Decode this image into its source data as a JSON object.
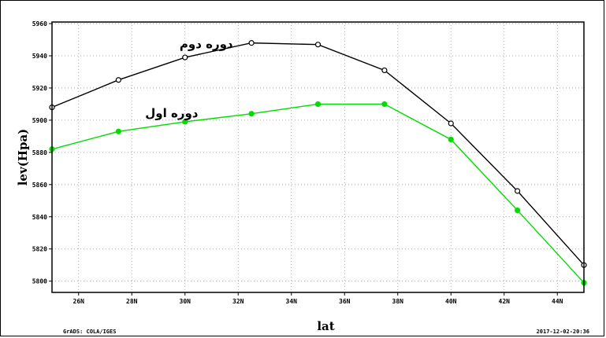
{
  "chart_data": {
    "type": "line",
    "title": "",
    "xlabel": "lat",
    "ylabel": "lev(Hpa)",
    "x": [
      25,
      27.5,
      30,
      32.5,
      35,
      37.5,
      40,
      42.5,
      45
    ],
    "x_ticks": [
      "26N",
      "28N",
      "30N",
      "32N",
      "34N",
      "36N",
      "38N",
      "40N",
      "42N",
      "44N"
    ],
    "x_tick_values": [
      26,
      28,
      30,
      32,
      34,
      36,
      38,
      40,
      42,
      44
    ],
    "xlim": [
      25,
      45
    ],
    "y_ticks": [
      "5960",
      "5940",
      "5920",
      "5900",
      "5880",
      "5860",
      "5840",
      "5820",
      "5800"
    ],
    "y_tick_values": [
      5960,
      5940,
      5920,
      5900,
      5880,
      5860,
      5840,
      5820,
      5800
    ],
    "ylim": [
      5793,
      5961
    ],
    "grid": true,
    "series": [
      {
        "name": "دوره دوم",
        "color": "#000000",
        "marker": "open-circle",
        "values": [
          5908,
          5925,
          5939,
          5948,
          5947,
          5931,
          5898,
          5856,
          5810
        ]
      },
      {
        "name": "دوره اول",
        "color": "#00dd00",
        "marker": "filled-circle",
        "values": [
          5882,
          5893,
          5899,
          5904,
          5910,
          5910,
          5888,
          5844,
          5799
        ]
      }
    ],
    "annotations": [
      {
        "text": "دوره دوم",
        "series": 0,
        "at_x": 30.8,
        "at_y": 5945
      },
      {
        "text": "دوره اول",
        "series": 1,
        "at_x": 29.5,
        "at_y": 5902
      }
    ]
  },
  "footer": {
    "left": "GrADS: COLA/IGES",
    "right": "2017-12-02-20:36"
  }
}
